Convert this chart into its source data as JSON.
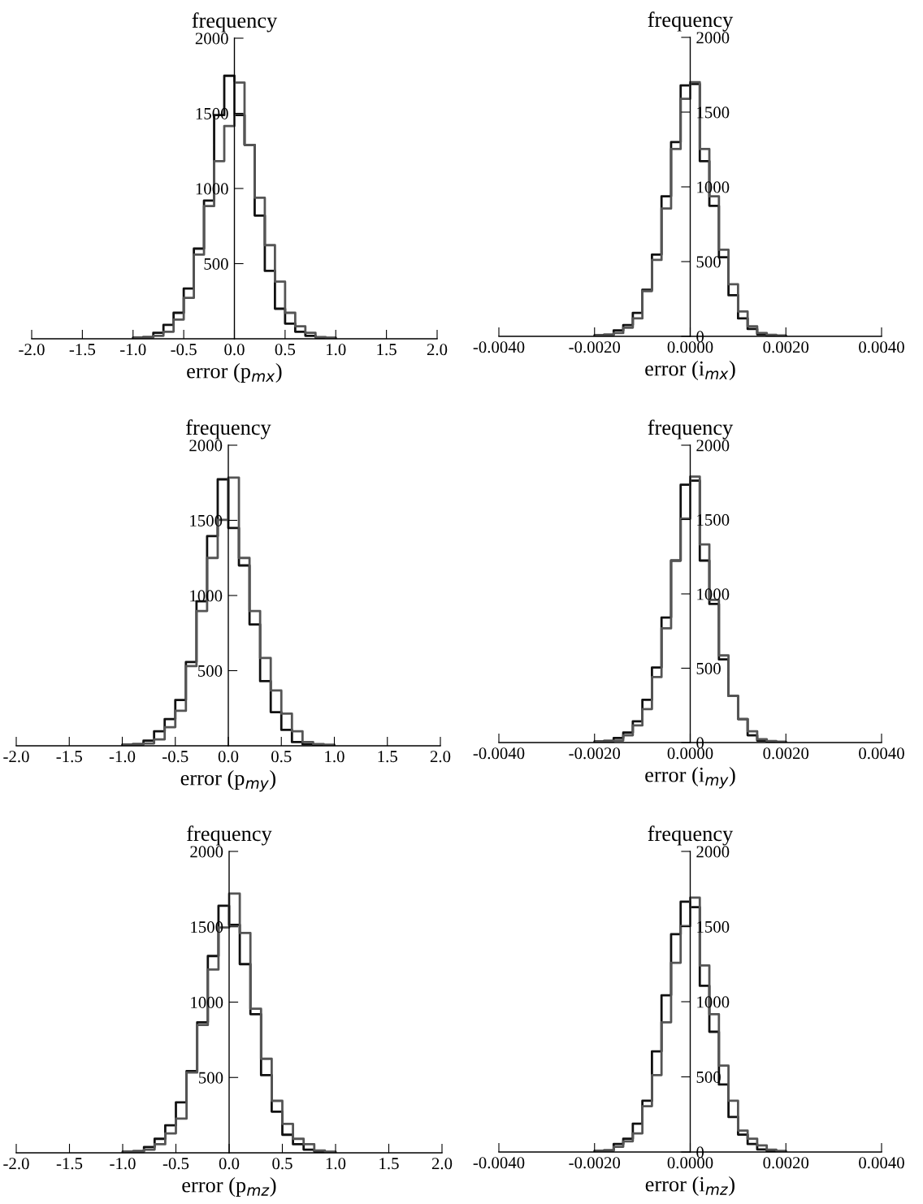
{
  "chart_data": [
    {
      "type": "histogram",
      "xlabel": "error (p$_{mx}$)",
      "ylabel": "frequency",
      "bins": [
        -1.0,
        -0.9,
        -0.8,
        -0.7,
        -0.6,
        -0.5,
        -0.4,
        -0.3,
        -0.2,
        -0.1,
        0,
        0.1,
        0.2,
        0.3,
        0.4,
        0.5,
        0.6,
        0.7,
        0.8,
        0.9,
        1.0
      ],
      "series": [
        {
          "color": "#111111",
          "values": [
            7,
            12,
            40,
            92,
            173,
            335,
            600,
            920,
            1488,
            1750,
            1488,
            1290,
            820,
            452,
            200,
            101,
            47,
            20,
            8,
            4
          ]
        },
        {
          "color": "#555555",
          "values": [
            4,
            8,
            20,
            47,
            128,
            272,
            560,
            883,
            1182,
            1416,
            1705,
            1290,
            938,
            623,
            380,
            173,
            83,
            40,
            12,
            7
          ]
        }
      ],
      "xlim": [
        -2,
        2
      ],
      "ylim": [
        0,
        2000
      ],
      "xticks": [
        {
          "value": -2,
          "label": "-2.0"
        },
        {
          "value": -1.5,
          "label": "-1.5"
        },
        {
          "value": -1,
          "label": "-1.0"
        },
        {
          "value": -0.5,
          "label": "-0.5"
        },
        {
          "value": 0,
          "label": "0.0"
        },
        {
          "value": 0.5,
          "label": "0.5"
        },
        {
          "value": 1,
          "label": "1.0"
        },
        {
          "value": 1.5,
          "label": "1.5"
        },
        {
          "value": 2,
          "label": "2.0"
        }
      ],
      "yticks": [
        500,
        1000,
        1500,
        2000
      ]
    },
    {
      "type": "histogram",
      "xlabel": "error (i$_{mx}$)",
      "ylabel": "frequency",
      "bins": [
        -0.002,
        -0.0018,
        -0.0016,
        -0.0014,
        -0.0012,
        -0.001,
        -0.0008,
        -0.0006,
        -0.0004,
        -0.0002,
        0,
        0.0002,
        0.0004,
        0.0006,
        0.0008,
        0.001,
        0.0012,
        0.0014,
        0.0016,
        0.0018,
        0.002
      ],
      "series": [
        {
          "color": "#111111",
          "values": [
            7,
            12,
            40,
            76,
            157,
            312,
            547,
            937,
            1299,
            1679,
            1688,
            1172,
            873,
            529,
            275,
            120,
            49,
            13,
            6,
            3
          ]
        },
        {
          "color": "#555555",
          "values": [
            4,
            8,
            22,
            58,
            120,
            303,
            511,
            855,
            1253,
            1589,
            1700,
            1253,
            937,
            579,
            348,
            166,
            67,
            22,
            10,
            6
          ]
        }
      ],
      "xlim": [
        -0.004,
        0.004
      ],
      "ylim": [
        0,
        2000
      ],
      "xticks": [
        {
          "value": -0.004,
          "label": "-0.0040"
        },
        {
          "value": -0.002,
          "label": "-0.0020"
        },
        {
          "value": 0,
          "label": "0.0000"
        },
        {
          "value": 0.002,
          "label": "0.0020"
        },
        {
          "value": 0.004,
          "label": "0.0040"
        }
      ],
      "yticks": [
        0,
        500,
        1000,
        1500,
        2000
      ]
    },
    {
      "type": "histogram",
      "xlabel": "error (p$_{my}$)",
      "ylabel": "frequency",
      "bins": [
        -1.0,
        -0.9,
        -0.8,
        -0.7,
        -0.6,
        -0.5,
        -0.4,
        -0.3,
        -0.2,
        -0.1,
        0,
        0.1,
        0.2,
        0.3,
        0.4,
        0.5,
        0.6,
        0.7,
        0.8,
        0.9,
        1.0
      ],
      "series": [
        {
          "color": "#111111",
          "values": [
            7,
            12,
            34,
            97,
            178,
            305,
            557,
            962,
            1395,
            1773,
            1449,
            1200,
            808,
            430,
            224,
            106,
            25,
            10,
            5,
            3
          ]
        },
        {
          "color": "#555555",
          "values": [
            4,
            8,
            16,
            43,
            124,
            233,
            530,
            897,
            1250,
            1503,
            1785,
            1250,
            897,
            584,
            368,
            214,
            97,
            25,
            12,
            7
          ]
        }
      ],
      "xlim": [
        -2,
        2
      ],
      "ylim": [
        0,
        2000
      ],
      "xticks": [
        {
          "value": -2,
          "label": "-2.0"
        },
        {
          "value": -1.5,
          "label": "-1.5"
        },
        {
          "value": -1,
          "label": "-1.0"
        },
        {
          "value": -0.5,
          "label": "-0.5"
        },
        {
          "value": 0,
          "label": "0.0"
        },
        {
          "value": 0.5,
          "label": "0.5"
        },
        {
          "value": 1,
          "label": "1.0"
        },
        {
          "value": 1.5,
          "label": "1.5"
        },
        {
          "value": 2,
          "label": "2.0"
        }
      ],
      "yticks": [
        500,
        1000,
        1500,
        2000
      ]
    },
    {
      "type": "histogram",
      "xlabel": "error (i$_{my}$)",
      "ylabel": "frequency",
      "bins": [
        -0.002,
        -0.0018,
        -0.0016,
        -0.0014,
        -0.0012,
        -0.001,
        -0.0008,
        -0.0006,
        -0.0004,
        -0.0002,
        0,
        0.0002,
        0.0004,
        0.0006,
        0.0008,
        0.001,
        0.0012,
        0.0014,
        0.0016,
        0.0018,
        0.002
      ],
      "series": [
        {
          "color": "#111111",
          "values": [
            7,
            12,
            31,
            67,
            143,
            288,
            505,
            841,
            1224,
            1734,
            1762,
            1224,
            932,
            559,
            313,
            158,
            49,
            13,
            6,
            3
          ]
        },
        {
          "color": "#555555",
          "values": [
            4,
            8,
            13,
            49,
            115,
            225,
            440,
            768,
            1224,
            1506,
            1789,
            1333,
            960,
            586,
            313,
            158,
            76,
            22,
            10,
            6
          ]
        }
      ],
      "xlim": [
        -0.004,
        0.004
      ],
      "ylim": [
        0,
        2000
      ],
      "xticks": [
        {
          "value": -0.004,
          "label": "-0.0040"
        },
        {
          "value": -0.002,
          "label": "-0.0020"
        },
        {
          "value": 0,
          "label": "0.0000"
        },
        {
          "value": 0.002,
          "label": "0.0020"
        },
        {
          "value": 0.004,
          "label": "0.0040"
        }
      ],
      "yticks": [
        0,
        500,
        1000,
        1500,
        2000
      ]
    },
    {
      "type": "histogram",
      "xlabel": "error (p$_{mz}$)",
      "ylabel": "frequency",
      "bins": [
        -1.0,
        -0.9,
        -0.8,
        -0.7,
        -0.6,
        -0.5,
        -0.4,
        -0.3,
        -0.2,
        -0.1,
        0,
        0.1,
        0.2,
        0.3,
        0.4,
        0.5,
        0.6,
        0.7,
        0.8,
        0.9,
        1.0
      ],
      "series": [
        {
          "color": "#111111",
          "values": [
            7,
            12,
            39,
            93,
            183,
            335,
            542,
            866,
            1306,
            1639,
            1513,
            1252,
            920,
            515,
            273,
            120,
            57,
            21,
            8,
            4
          ]
        },
        {
          "color": "#555555",
          "values": [
            4,
            8,
            21,
            57,
            129,
            227,
            533,
            848,
            1216,
            1495,
            1720,
            1459,
            956,
            624,
            345,
            192,
            93,
            57,
            15,
            8
          ]
        }
      ],
      "xlim": [
        -2,
        2
      ],
      "ylim": [
        0,
        2000
      ],
      "xticks": [
        {
          "value": -2,
          "label": "-2.0"
        },
        {
          "value": -1.5,
          "label": "-1.5"
        },
        {
          "value": -1,
          "label": "-1.0"
        },
        {
          "value": -0.5,
          "label": "-0.5"
        },
        {
          "value": 0,
          "label": "0.0"
        },
        {
          "value": 0.5,
          "label": "0.5"
        },
        {
          "value": 1,
          "label": "1.0"
        },
        {
          "value": 1.5,
          "label": "1.5"
        },
        {
          "value": 2,
          "label": "2.0"
        }
      ],
      "yticks": [
        500,
        1000,
        1500,
        2000
      ]
    },
    {
      "type": "histogram",
      "xlabel": "error (i$_{mz}$)",
      "ylabel": "frequency",
      "bins": [
        -0.002,
        -0.0018,
        -0.0016,
        -0.0014,
        -0.0012,
        -0.001,
        -0.0008,
        -0.0006,
        -0.0004,
        -0.0002,
        0,
        0.0002,
        0.0004,
        0.0006,
        0.0008,
        0.001,
        0.0012,
        0.0014,
        0.0016,
        0.0018,
        0.002
      ],
      "series": [
        {
          "color": "#111111",
          "values": [
            7,
            12,
            53,
            89,
            189,
            341,
            670,
            1043,
            1449,
            1665,
            1629,
            1106,
            800,
            449,
            233,
            116,
            53,
            17,
            6,
            3
          ]
        },
        {
          "color": "#555555",
          "values": [
            4,
            8,
            35,
            71,
            124,
            305,
            512,
            863,
            1259,
            1503,
            1692,
            1241,
            917,
            575,
            341,
            143,
            89,
            44,
            15,
            8
          ]
        }
      ],
      "xlim": [
        -0.004,
        0.004
      ],
      "ylim": [
        0,
        2000
      ],
      "xticks": [
        {
          "value": -0.004,
          "label": "-0.0040"
        },
        {
          "value": -0.002,
          "label": "-0.0020"
        },
        {
          "value": 0,
          "label": "0.0000"
        },
        {
          "value": 0.002,
          "label": "0.0020"
        },
        {
          "value": 0.004,
          "label": "0.0040"
        }
      ],
      "yticks": [
        0,
        500,
        1000,
        1500,
        2000
      ]
    }
  ]
}
